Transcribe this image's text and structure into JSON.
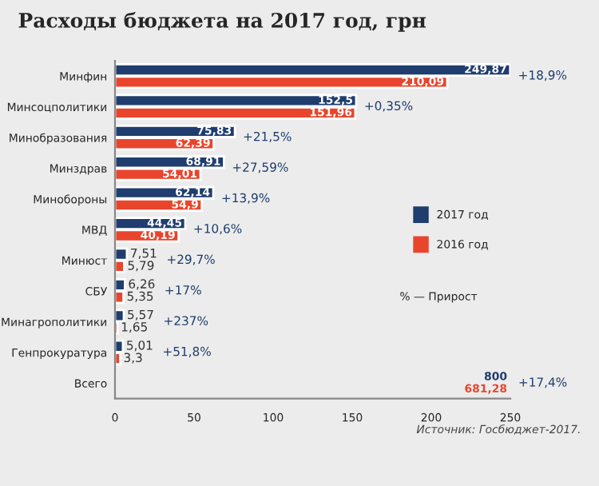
{
  "chart_data": {
    "type": "bar",
    "orientation": "horizontal",
    "title": "Расходы бюджета на 2017 год, грн",
    "categories": [
      "Минфин",
      "Минсоцполитики",
      "Минобразования",
      "Минздрав",
      "Минобороны",
      "МВД",
      "Минюст",
      "СБУ",
      "Минагрополитики",
      "Генпрокуратура",
      "Всего"
    ],
    "series": [
      {
        "name": "2017 год",
        "color": "#1f3d6e",
        "values": [
          249.87,
          152.5,
          75.83,
          68.91,
          62.14,
          44.45,
          7.51,
          6.26,
          5.57,
          5.01,
          null
        ],
        "value_labels": [
          "249,87",
          "152,5",
          "75,83",
          "68,91",
          "62,14",
          "44,45",
          "7,51",
          "6,26",
          "5,57",
          "5,01",
          "800"
        ]
      },
      {
        "name": "2016 год",
        "color": "#e8452c",
        "values": [
          210.09,
          151.96,
          62.39,
          54.01,
          54.9,
          40.19,
          5.79,
          5.35,
          1.65,
          3.3,
          null
        ],
        "value_labels": [
          "210,09",
          "151,96",
          "62,39",
          "54,01",
          "54,9",
          "40,19",
          "5,79",
          "5,35",
          "1,65",
          "3,3",
          "681,28"
        ]
      }
    ],
    "xlim": [
      0,
      250
    ],
    "xticks": [
      0,
      50,
      100,
      150,
      200,
      250
    ],
    "grid": false,
    "legend": "right",
    "annotations": [
      "+18,9%",
      "+0,35%",
      "+21,5%",
      "+27,59%",
      "+13,9%",
      "+10,6%",
      "+29,7%",
      "+17%",
      "+237%",
      "+51,8%",
      "+17,4%",
      "% — Прирост",
      "Источник: Госбюджет-2017."
    ]
  }
}
